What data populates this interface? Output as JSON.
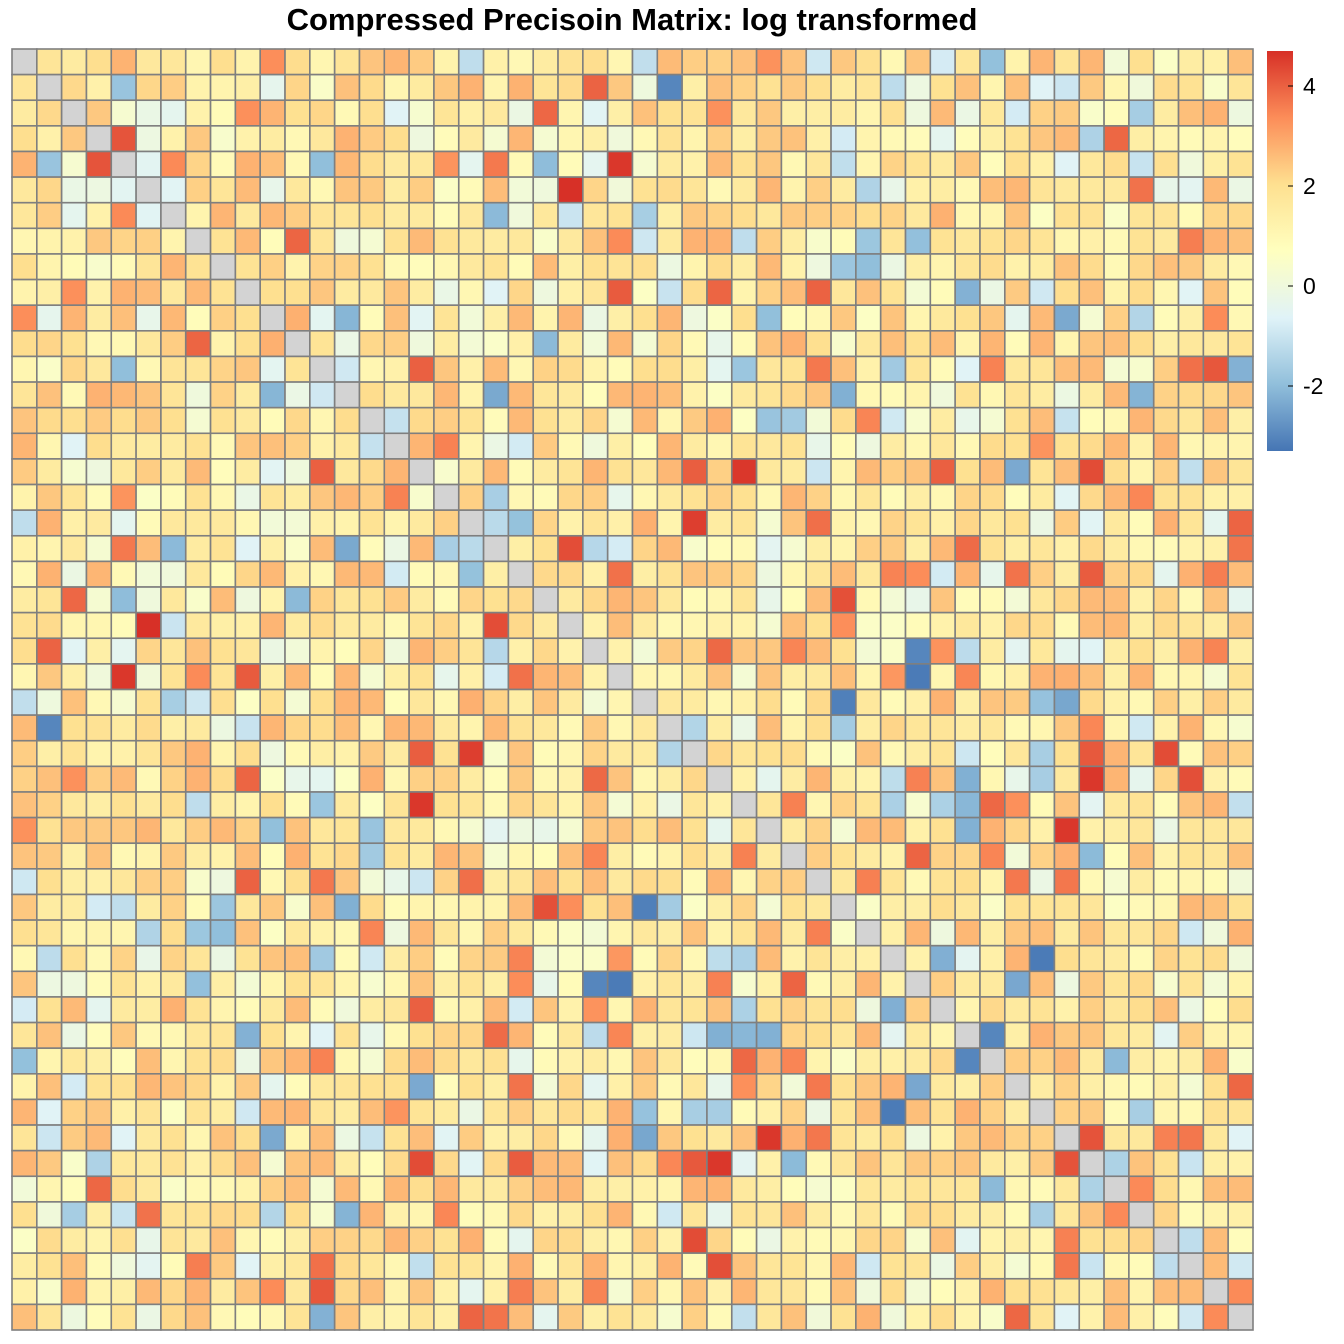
{
  "chart_data": {
    "type": "heatmap",
    "title": "Compressed Precisoin Matrix: log transformed",
    "n_rows": 50,
    "n_cols": 50,
    "matrix_generation": "approximate reconstruction: pale gray diagonal, mostly light yellow/orange cells with scattered red and blue cells",
    "diagonal_color": "#D3D3D3",
    "grid_color": "#7F7F7F",
    "palette": [
      "#4575B4",
      "#91BFDB",
      "#E0F3F8",
      "#FFFFBF",
      "#FEE090",
      "#FC8D59",
      "#D73027"
    ],
    "legend": {
      "min": -3.3,
      "max": 4.7,
      "ticks": [
        {
          "value": 4,
          "label": "4"
        },
        {
          "value": 2,
          "label": "2"
        },
        {
          "value": 0,
          "label": "0"
        },
        {
          "value": -2,
          "label": "-2"
        }
      ]
    },
    "highlighted_cells": [
      {
        "row": 5,
        "col": 22,
        "value": 4.7
      },
      {
        "row": 18,
        "col": 27,
        "value": 4.5
      },
      {
        "row": 24,
        "col": 4,
        "value": 4.6
      },
      {
        "row": 29,
        "col": 16,
        "value": 4.6
      },
      {
        "row": 30,
        "col": 42,
        "value": 4.6
      },
      {
        "row": 43,
        "col": 28,
        "value": 4.6
      },
      {
        "row": 36,
        "col": 24,
        "value": -3.2
      },
      {
        "row": 36,
        "col": 23,
        "value": -3.0
      },
      {
        "row": 25,
        "col": 33,
        "value": -3.1
      },
      {
        "row": 26,
        "col": 1,
        "value": -3.0
      },
      {
        "row": 41,
        "col": 35,
        "value": -3.2
      },
      {
        "row": 38,
        "col": 39,
        "value": -3.0
      }
    ]
  }
}
